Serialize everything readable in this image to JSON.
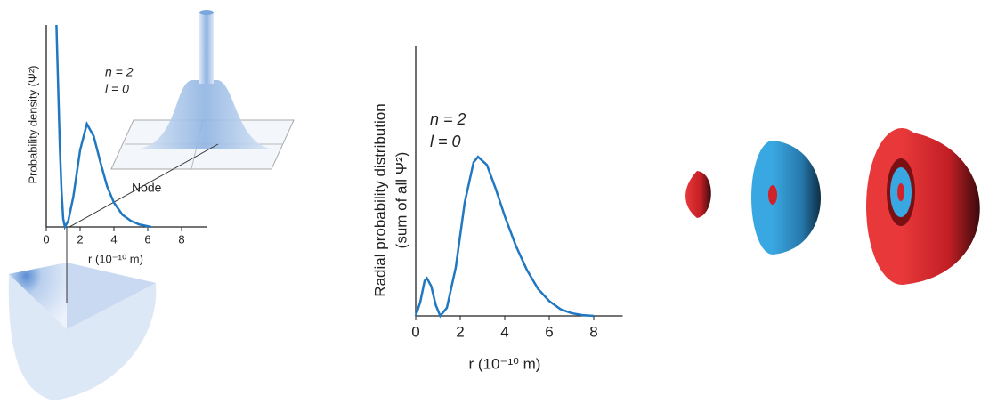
{
  "chart_data": [
    {
      "type": "line",
      "y_label": "Probability density (Ψ²)",
      "x_label": "r (10⁻¹⁰ m)",
      "annotations": [
        "n = 2",
        "l = 0",
        "Node"
      ],
      "x": [
        0.6,
        0.7,
        0.8,
        0.9,
        1.0,
        1.1,
        1.3,
        1.6,
        2.0,
        2.4,
        2.8,
        3.2,
        3.6,
        4.0,
        4.5,
        5.0,
        5.5,
        6.2
      ],
      "series": [
        {
          "color": "#1f78c1",
          "values": [
            100,
            70,
            40,
            18,
            4,
            0,
            3,
            15,
            38,
            51,
            45,
            32,
            20,
            12,
            6,
            3,
            1.2,
            0
          ]
        }
      ],
      "xlim": [
        0,
        9.5
      ],
      "xticks": [
        0,
        2,
        4,
        6,
        8
      ],
      "ylim": [
        0,
        100
      ]
    },
    {
      "type": "line",
      "y_label": [
        "Radial probability distribution",
        "(sum of all Ψ²)"
      ],
      "x_label": "r (10⁻¹⁰ m)",
      "annotations": [
        "n = 2",
        "l = 0"
      ],
      "x": [
        0,
        0.2,
        0.4,
        0.5,
        0.7,
        0.9,
        1.1,
        1.4,
        1.8,
        2.2,
        2.6,
        2.8,
        3.2,
        3.6,
        4.0,
        4.5,
        5.0,
        5.5,
        6.0,
        6.5,
        7.0,
        7.5,
        8.0
      ],
      "series": [
        {
          "color": "#1f78c1",
          "values": [
            0,
            5,
            13,
            14,
            11,
            4,
            0,
            3,
            18,
            42,
            57,
            59,
            56,
            47,
            37,
            26,
            17,
            10,
            5.5,
            2.5,
            1,
            0.3,
            0
          ]
        }
      ],
      "xlim": [
        0,
        9.3
      ],
      "xticks": [
        0,
        2,
        4,
        6,
        8
      ],
      "ylim": [
        0,
        100
      ]
    }
  ]
}
